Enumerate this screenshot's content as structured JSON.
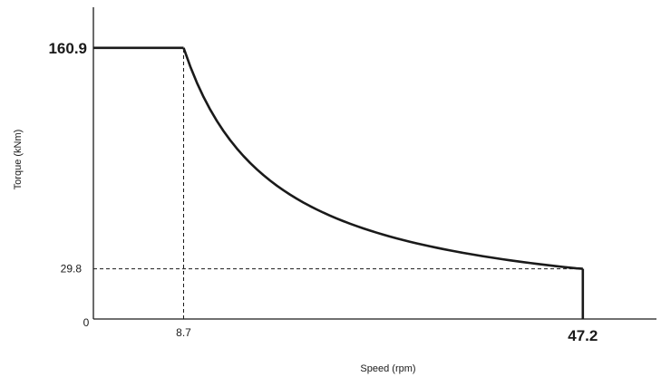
{
  "chart_data": {
    "type": "line",
    "title": "",
    "xlabel": "Speed (rpm)",
    "ylabel": "Torque (kNm)",
    "origin_label": "0",
    "x_ticks": [
      {
        "value": 8.7,
        "label": "8.7",
        "style": "small"
      },
      {
        "value": 47.2,
        "label": "47.2",
        "style": "big"
      }
    ],
    "y_ticks": [
      {
        "value": 160.9,
        "label": "160.9",
        "style": "big"
      },
      {
        "value": 29.8,
        "label": "29.8",
        "style": "small"
      }
    ],
    "xlim": [
      0,
      54.3
    ],
    "ylim": [
      0,
      185
    ],
    "series": [
      {
        "segments": [
          {
            "kind": "constant",
            "x": [
              0,
              8.7
            ],
            "y": 160.9
          },
          {
            "kind": "constant_power",
            "x": [
              8.7,
              47.2
            ],
            "y_start": 160.9,
            "y_end": 29.8
          },
          {
            "kind": "vertical",
            "x": 47.2,
            "y": [
              29.8,
              0
            ]
          }
        ]
      }
    ],
    "reference_lines": [
      {
        "orientation": "vertical",
        "x": 8.7,
        "y_range": [
          0,
          160.9
        ],
        "style": "dashed"
      },
      {
        "orientation": "horizontal",
        "y": 29.8,
        "x_range": [
          0,
          47.2
        ],
        "style": "dashed"
      }
    ],
    "colors": {
      "line": "#1a1a1a",
      "axis": "#1a1a1a"
    },
    "grid": false
  }
}
